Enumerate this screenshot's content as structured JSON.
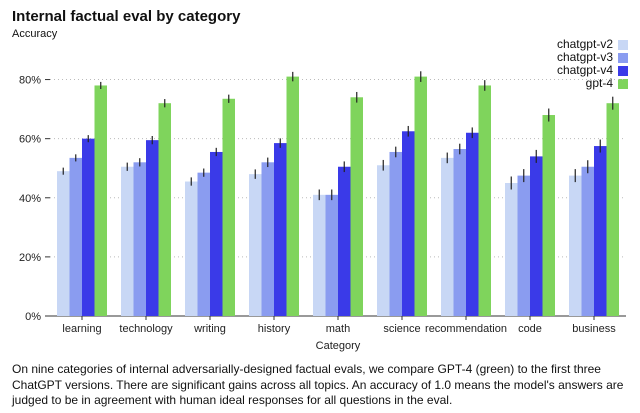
{
  "chart_data": {
    "type": "bar",
    "title": "Internal factual eval by category",
    "ylabel": "Accuracy",
    "xlabel": "Category",
    "ylim": [
      0,
      0.9
    ],
    "yticks": [
      0,
      0.2,
      0.4,
      0.6,
      0.8
    ],
    "ytick_labels": [
      "0%",
      "20%",
      "40%",
      "60%",
      "80%"
    ],
    "legend_position": "top-right",
    "grid": "horizontal dotted",
    "categories": [
      "learning",
      "technology",
      "writing",
      "history",
      "math",
      "science",
      "recommendation",
      "code",
      "business"
    ],
    "series": [
      {
        "name": "chatgpt-v2",
        "color": "#c8d7f5",
        "values": [
          0.49,
          0.505,
          0.455,
          0.48,
          0.41,
          0.51,
          0.535,
          0.45,
          0.475
        ],
        "errors": [
          0.012,
          0.014,
          0.014,
          0.016,
          0.018,
          0.018,
          0.018,
          0.022,
          0.022
        ]
      },
      {
        "name": "chatgpt-v3",
        "color": "#8a9cf0",
        "values": [
          0.535,
          0.52,
          0.485,
          0.52,
          0.41,
          0.555,
          0.565,
          0.475,
          0.505
        ],
        "errors": [
          0.012,
          0.014,
          0.014,
          0.016,
          0.018,
          0.018,
          0.018,
          0.022,
          0.022
        ]
      },
      {
        "name": "chatgpt-v4",
        "color": "#3a3ae8",
        "values": [
          0.6,
          0.595,
          0.555,
          0.585,
          0.505,
          0.625,
          0.62,
          0.54,
          0.575
        ],
        "errors": [
          0.012,
          0.014,
          0.014,
          0.016,
          0.018,
          0.018,
          0.018,
          0.022,
          0.022
        ]
      },
      {
        "name": "gpt-4",
        "color": "#7fd45c",
        "values": [
          0.78,
          0.72,
          0.735,
          0.81,
          0.74,
          0.81,
          0.78,
          0.68,
          0.72
        ],
        "errors": [
          0.012,
          0.014,
          0.014,
          0.016,
          0.018,
          0.018,
          0.018,
          0.022,
          0.022
        ]
      }
    ]
  },
  "caption": "On nine categories of internal adversarially-designed factual evals, we compare GPT-4 (green) to the first three ChatGPT versions. There are significant gains across all topics. An accuracy of 1.0 means the model's answers are judged to be in agreement with human ideal responses for all questions in the eval."
}
